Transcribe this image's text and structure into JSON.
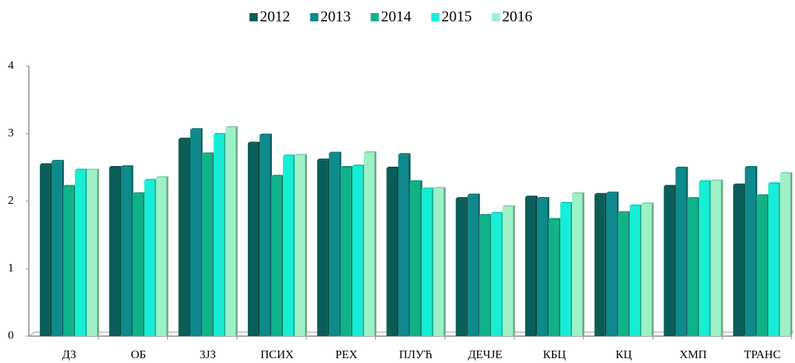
{
  "chart_data": {
    "type": "bar",
    "categories": [
      "ДЗ",
      "ОБ",
      "ЗЈЗ",
      "ПСИХ",
      "РЕХ",
      "ПЛУЋ",
      "ДЕЧЈЕ",
      "КБЦ",
      "КЦ",
      "ХМП",
      "ТРАНС"
    ],
    "series": [
      {
        "name": "2012",
        "color": "#0b5e57",
        "values": [
          2.54,
          2.5,
          2.92,
          2.86,
          2.61,
          2.49,
          2.04,
          2.06,
          2.1,
          2.22,
          2.24
        ]
      },
      {
        "name": "2013",
        "color": "#0e8a8c",
        "values": [
          2.59,
          2.51,
          3.06,
          2.98,
          2.71,
          2.69,
          2.09,
          2.04,
          2.12,
          2.49,
          2.5
        ]
      },
      {
        "name": "2014",
        "color": "#10b28a",
        "values": [
          2.22,
          2.11,
          2.7,
          2.37,
          2.5,
          2.29,
          1.79,
          1.73,
          1.83,
          2.04,
          2.08
        ]
      },
      {
        "name": "2015",
        "color": "#18eed6",
        "values": [
          2.46,
          2.31,
          2.99,
          2.67,
          2.52,
          2.18,
          1.82,
          1.97,
          1.93,
          2.29,
          2.26
        ]
      },
      {
        "name": "2016",
        "color": "#9cf2c6",
        "values": [
          2.46,
          2.35,
          3.09,
          2.68,
          2.72,
          2.19,
          1.92,
          2.11,
          1.96,
          2.3,
          2.41
        ]
      }
    ],
    "ylim": [
      0,
      4
    ],
    "yticks": [
      0,
      1,
      2,
      3,
      4
    ],
    "grid": false,
    "legend": "top"
  }
}
